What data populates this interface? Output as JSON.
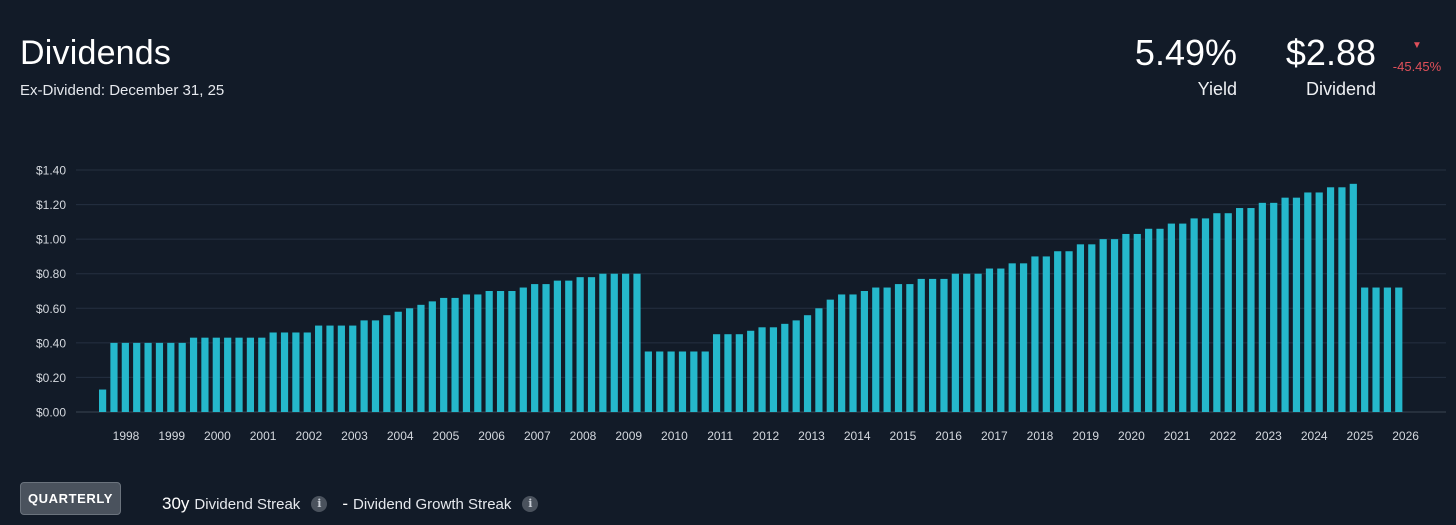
{
  "header": {
    "title": "Dividends",
    "subtitle": "Ex-Dividend: December 31, 25"
  },
  "stats": {
    "yield_value": "5.49%",
    "yield_label": "Yield",
    "dividend_value": "$2.88",
    "dividend_label": "Dividend",
    "change_pct": "-45.45%",
    "change_direction": "down",
    "change_color": "#e0505a"
  },
  "footer": {
    "frequency_button": "QUARTERLY",
    "dividend_streak_value": "30y",
    "dividend_streak_label": "Dividend Streak",
    "growth_streak_value": "-",
    "growth_streak_label": "Dividend Growth Streak",
    "info_icon": "info-icon"
  },
  "chart_data": {
    "type": "bar",
    "bar_color": "#25b8cc",
    "grid": true,
    "y_tick_labels": [
      "$0.00",
      "$0.20",
      "$0.40",
      "$0.60",
      "$0.80",
      "$1.00",
      "$1.20",
      "$1.40"
    ],
    "ylim": [
      0,
      1.4
    ],
    "x_tick_labels": [
      "1998",
      "1999",
      "2000",
      "2001",
      "2002",
      "2003",
      "2004",
      "2005",
      "2006",
      "2007",
      "2008",
      "2009",
      "2010",
      "2011",
      "2012",
      "2013",
      "2014",
      "2015",
      "2016",
      "2017",
      "2018",
      "2019",
      "2020",
      "2021",
      "2022",
      "2023",
      "2024",
      "2025",
      "2026"
    ],
    "values": [
      0.13,
      0.4,
      0.4,
      0.4,
      0.4,
      0.4,
      0.4,
      0.4,
      0.43,
      0.43,
      0.43,
      0.43,
      0.43,
      0.43,
      0.43,
      0.46,
      0.46,
      0.46,
      0.46,
      0.5,
      0.5,
      0.5,
      0.5,
      0.53,
      0.53,
      0.56,
      0.58,
      0.6,
      0.62,
      0.64,
      0.66,
      0.66,
      0.68,
      0.68,
      0.7,
      0.7,
      0.7,
      0.72,
      0.74,
      0.74,
      0.76,
      0.76,
      0.78,
      0.78,
      0.8,
      0.8,
      0.8,
      0.8,
      0.35,
      0.35,
      0.35,
      0.35,
      0.35,
      0.35,
      0.45,
      0.45,
      0.45,
      0.47,
      0.49,
      0.49,
      0.51,
      0.53,
      0.56,
      0.6,
      0.65,
      0.68,
      0.68,
      0.7,
      0.72,
      0.72,
      0.74,
      0.74,
      0.77,
      0.77,
      0.77,
      0.8,
      0.8,
      0.8,
      0.83,
      0.83,
      0.86,
      0.86,
      0.9,
      0.9,
      0.93,
      0.93,
      0.97,
      0.97,
      1.0,
      1.0,
      1.03,
      1.03,
      1.06,
      1.06,
      1.09,
      1.09,
      1.12,
      1.12,
      1.15,
      1.15,
      1.18,
      1.18,
      1.21,
      1.21,
      1.24,
      1.24,
      1.27,
      1.27,
      1.3,
      1.3,
      1.32,
      0.72,
      0.72,
      0.72,
      0.72
    ]
  }
}
